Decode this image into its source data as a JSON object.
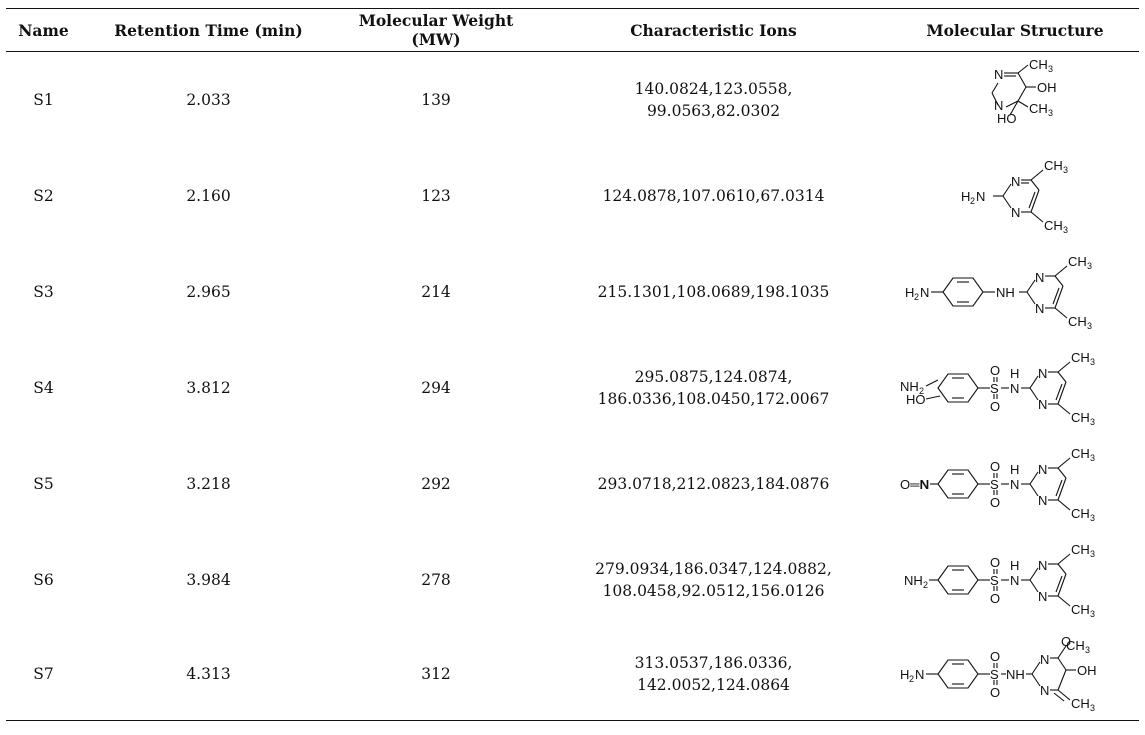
{
  "table": {
    "headers": [
      "Name",
      "Retention Time (min)",
      "Molecular Weight (MW)",
      "Characteristic Ions",
      "Molecular Structure"
    ],
    "rows": [
      {
        "name": "S1",
        "rt": "2.033",
        "mw": "139",
        "ions": [
          "140.0824,123.0558,",
          "99.0563,82.0302"
        ],
        "structure": "s1-structure"
      },
      {
        "name": "S2",
        "rt": "2.160",
        "mw": "123",
        "ions": [
          "124.0878,107.0610,67.0314"
        ],
        "structure": "s2-structure"
      },
      {
        "name": "S3",
        "rt": "2.965",
        "mw": "214",
        "ions": [
          "215.1301,108.0689,198.1035"
        ],
        "structure": "s3-structure"
      },
      {
        "name": "S4",
        "rt": "3.812",
        "mw": "294",
        "ions": [
          "295.0875,124.0874,",
          "186.0336,108.0450,172.0067"
        ],
        "structure": "s4-structure"
      },
      {
        "name": "S5",
        "rt": "3.218",
        "mw": "292",
        "ions": [
          "293.0718,212.0823,184.0876"
        ],
        "structure": "s5-structure"
      },
      {
        "name": "S6",
        "rt": "3.984",
        "mw": "278",
        "ions": [
          "279.0934,186.0347,124.0882,",
          "108.0458,92.0512,156.0126"
        ],
        "structure": "s6-structure"
      },
      {
        "name": "S7",
        "rt": "4.313",
        "mw": "312",
        "ions": [
          "313.0537,186.0336,",
          "142.0052,124.0864"
        ],
        "structure": "s7-structure"
      }
    ]
  },
  "structure_labels": {
    "ch3": "CH",
    "three": "3",
    "n": "N",
    "oh": "OH",
    "ho": "HO",
    "h2n": "H",
    "two": "2",
    "nh": "NH",
    "nh2": "NH",
    "h": "H",
    "s": "S",
    "o": "O",
    "on": "O═N"
  }
}
